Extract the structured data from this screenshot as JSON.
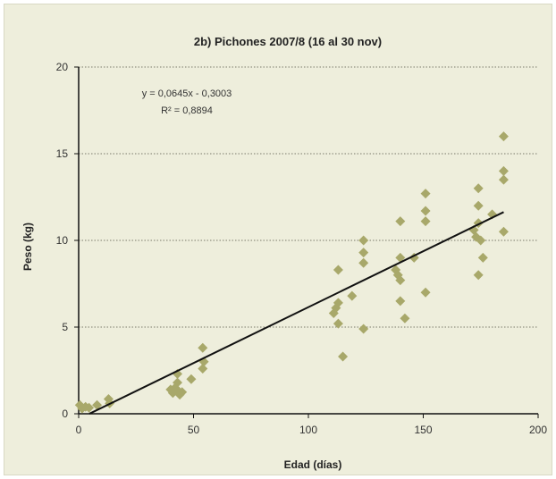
{
  "chart_data": {
    "type": "scatter",
    "title": "2b) Pichones 2007/8 (16 al 30 nov)",
    "xlabel": "Edad (días)",
    "ylabel": "Peso (kg)",
    "xlim": [
      0,
      200
    ],
    "ylim": [
      0,
      20
    ],
    "xticks": [
      0,
      50,
      100,
      150,
      200
    ],
    "yticks": [
      0,
      5,
      10,
      15,
      20
    ],
    "grid": "horizontal dotted",
    "marker_color": "#a8a86a",
    "trendline": {
      "slope": 0.0645,
      "intercept": -0.3003,
      "x_range": [
        4.7,
        185
      ],
      "equation": "y = 0,0645x - 0,3003",
      "r2": "R² = 0,8894",
      "color": "#111111"
    },
    "points": [
      [
        0.5,
        0.5
      ],
      [
        1.5,
        0.3
      ],
      [
        3,
        0.4
      ],
      [
        4.5,
        0.35
      ],
      [
        8,
        0.5
      ],
      [
        13,
        0.85
      ],
      [
        13.5,
        0.6
      ],
      [
        40,
        1.4
      ],
      [
        41,
        1.2
      ],
      [
        42,
        1.5
      ],
      [
        43,
        2.3
      ],
      [
        43,
        1.8
      ],
      [
        43.5,
        1.3
      ],
      [
        44,
        1.1
      ],
      [
        45,
        1.25
      ],
      [
        49,
        2.0
      ],
      [
        54,
        3.8
      ],
      [
        54,
        2.6
      ],
      [
        54.5,
        3.0
      ],
      [
        111,
        5.8
      ],
      [
        112,
        6.1
      ],
      [
        113,
        8.3
      ],
      [
        113,
        6.4
      ],
      [
        113,
        5.2
      ],
      [
        115,
        3.3
      ],
      [
        119,
        6.8
      ],
      [
        124,
        10.0
      ],
      [
        124,
        9.3
      ],
      [
        124,
        8.7
      ],
      [
        124,
        4.9
      ],
      [
        138,
        8.3
      ],
      [
        139,
        8.0
      ],
      [
        140,
        11.1
      ],
      [
        140,
        9.0
      ],
      [
        140,
        7.7
      ],
      [
        140,
        6.5
      ],
      [
        142,
        5.5
      ],
      [
        146,
        9.0
      ],
      [
        151,
        12.7
      ],
      [
        151,
        11.7
      ],
      [
        151,
        11.1
      ],
      [
        151,
        7.0
      ],
      [
        172,
        10.6
      ],
      [
        173,
        10.2
      ],
      [
        174,
        13.0
      ],
      [
        174,
        12.0
      ],
      [
        174,
        11.0
      ],
      [
        174,
        8.0
      ],
      [
        175,
        10.0
      ],
      [
        176,
        9.0
      ],
      [
        180,
        11.5
      ],
      [
        185,
        16.0
      ],
      [
        185,
        14.0
      ],
      [
        185,
        13.5
      ],
      [
        185,
        10.5
      ]
    ]
  }
}
